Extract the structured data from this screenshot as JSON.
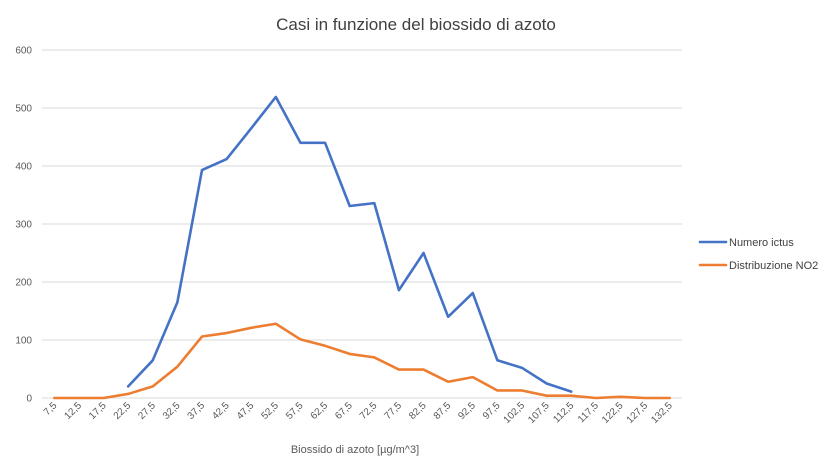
{
  "chart_data": {
    "type": "line",
    "title": "Casi in funzione del biossido di azoto",
    "xlabel": "Biossido di azoto [µg/m^3]",
    "ylabel": "",
    "ylim": [
      0,
      600
    ],
    "yticks": [
      0,
      100,
      200,
      300,
      400,
      500,
      600
    ],
    "grid": true,
    "legend_position": "right",
    "categories": [
      "7,5",
      "12,5",
      "17,5",
      "22,5",
      "27,5",
      "32,5",
      "37,5",
      "42,5",
      "47,5",
      "52,5",
      "57,5",
      "62,5",
      "67,5",
      "72,5",
      "77,5",
      "82,5",
      "87,5",
      "92,5",
      "97,5",
      "102,5",
      "107,5",
      "112,5",
      "117,5",
      "122,5",
      "127,5",
      "132,5"
    ],
    "series": [
      {
        "name": "Numero ictus",
        "color": "#4472c4",
        "values": [
          null,
          null,
          null,
          20,
          65,
          165,
          393,
          412,
          465,
          519,
          440,
          440,
          331,
          336,
          186,
          250,
          140,
          181,
          65,
          52,
          25,
          11,
          null,
          null,
          null,
          null
        ]
      },
      {
        "name": "Distribuzione NO2",
        "color": "#ed7d31",
        "values": [
          0,
          0,
          0,
          7,
          20,
          54,
          106,
          112,
          121,
          128,
          101,
          90,
          76,
          70,
          49,
          49,
          28,
          36,
          13,
          13,
          4,
          4,
          0,
          2,
          0,
          0
        ]
      }
    ]
  }
}
